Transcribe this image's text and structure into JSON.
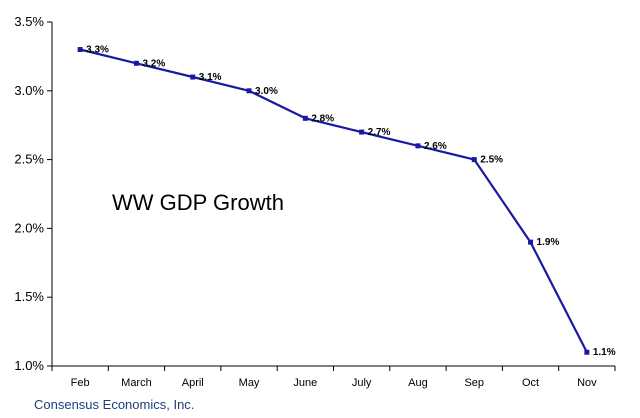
{
  "chart_data": {
    "type": "line",
    "title": "WW GDP Growth",
    "categories": [
      "Feb",
      "March",
      "April",
      "May",
      "June",
      "July",
      "Aug",
      "Sep",
      "Oct",
      "Nov"
    ],
    "series": [
      {
        "values": [
          3.3,
          3.2,
          3.1,
          3.0,
          2.8,
          2.7,
          2.6,
          2.5,
          1.9,
          1.1
        ],
        "color": "#1a1aa0"
      }
    ],
    "data_labels": [
      "3.3%",
      "3.2%",
      "3.1%",
      "3.0%",
      "2.8%",
      "2.7%",
      "2.6%",
      "2.5%",
      "1.9%",
      "1.1%"
    ],
    "y_ticks": [
      1.0,
      1.5,
      2.0,
      2.5,
      3.0,
      3.5
    ],
    "y_tick_labels": [
      "1.0%",
      "1.5%",
      "2.0%",
      "2.5%",
      "3.0%",
      "3.5%"
    ],
    "ylim": [
      1.0,
      3.5
    ],
    "grid": false,
    "legend": "none",
    "source": "Consensus Economics, Inc."
  }
}
